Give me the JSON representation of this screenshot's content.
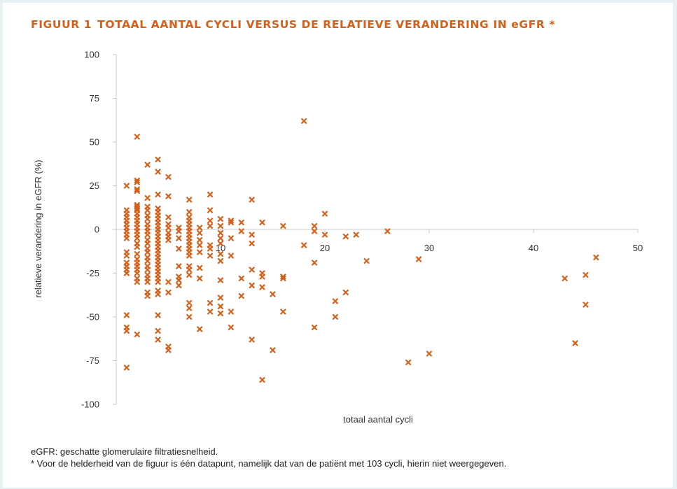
{
  "figure": {
    "label": "FIGUUR 1",
    "title": "TOTAAL AANTAL CYCLI VERSUS DE RELATIEVE VERANDERING IN eGFR *",
    "accent_color": "#d4601a"
  },
  "footnotes": {
    "line1": "eGFR: geschatte glomerulaire filtratiesnelheid.",
    "line2": "* Voor de helderheid van de figuur is één datapunt, namelijk dat van de patiënt met 103 cycli, hierin niet weergegeven."
  },
  "chart_data": {
    "type": "scatter",
    "xlabel": "totaal aantal cycli",
    "ylabel": "relatieve verandering in eGFR (%)",
    "xlim": [
      0,
      50
    ],
    "ylim": [
      -100,
      100
    ],
    "xticks": [
      10,
      20,
      30,
      40,
      50
    ],
    "yticks": [
      100,
      75,
      50,
      25,
      0,
      -25,
      -50,
      -75,
      -100
    ],
    "grid": false,
    "marker": "x",
    "color": "#d4601a",
    "points": [
      [
        1,
        25
      ],
      [
        1,
        11
      ],
      [
        1,
        9
      ],
      [
        1,
        7
      ],
      [
        1,
        5
      ],
      [
        1,
        3
      ],
      [
        1,
        1
      ],
      [
        1,
        -1
      ],
      [
        1,
        -3
      ],
      [
        1,
        -5
      ],
      [
        1,
        -13
      ],
      [
        1,
        -15
      ],
      [
        1,
        -19
      ],
      [
        1,
        -21
      ],
      [
        1,
        -23
      ],
      [
        1,
        -25
      ],
      [
        1,
        -49
      ],
      [
        1,
        -56
      ],
      [
        1,
        -58
      ],
      [
        1,
        -79
      ],
      [
        2,
        53
      ],
      [
        2,
        28
      ],
      [
        2,
        27
      ],
      [
        2,
        23
      ],
      [
        2,
        22
      ],
      [
        2,
        14
      ],
      [
        2,
        13
      ],
      [
        2,
        12
      ],
      [
        2,
        11
      ],
      [
        2,
        9
      ],
      [
        2,
        7
      ],
      [
        2,
        5
      ],
      [
        2,
        3
      ],
      [
        2,
        1
      ],
      [
        2,
        -1
      ],
      [
        2,
        -3
      ],
      [
        2,
        -5
      ],
      [
        2,
        -8
      ],
      [
        2,
        -10
      ],
      [
        2,
        -14
      ],
      [
        2,
        -17
      ],
      [
        2,
        -19
      ],
      [
        2,
        -21
      ],
      [
        2,
        -23
      ],
      [
        2,
        -25
      ],
      [
        2,
        -28
      ],
      [
        2,
        -30
      ],
      [
        2,
        -60
      ],
      [
        3,
        37
      ],
      [
        3,
        18
      ],
      [
        3,
        13
      ],
      [
        3,
        11
      ],
      [
        3,
        8
      ],
      [
        3,
        6
      ],
      [
        3,
        3
      ],
      [
        3,
        1
      ],
      [
        3,
        -1
      ],
      [
        3,
        -3
      ],
      [
        3,
        -6
      ],
      [
        3,
        -8
      ],
      [
        3,
        -11
      ],
      [
        3,
        -13
      ],
      [
        3,
        -16
      ],
      [
        3,
        -18
      ],
      [
        3,
        -21
      ],
      [
        3,
        -23
      ],
      [
        3,
        -26
      ],
      [
        3,
        -28
      ],
      [
        3,
        -30
      ],
      [
        3,
        -36
      ],
      [
        3,
        -38
      ],
      [
        4,
        40
      ],
      [
        4,
        33
      ],
      [
        4,
        20
      ],
      [
        4,
        12
      ],
      [
        4,
        10
      ],
      [
        4,
        8
      ],
      [
        4,
        6
      ],
      [
        4,
        4
      ],
      [
        4,
        2
      ],
      [
        4,
        0
      ],
      [
        4,
        -2
      ],
      [
        4,
        -4
      ],
      [
        4,
        -6
      ],
      [
        4,
        -8
      ],
      [
        4,
        -10
      ],
      [
        4,
        -12
      ],
      [
        4,
        -14
      ],
      [
        4,
        -16
      ],
      [
        4,
        -18
      ],
      [
        4,
        -20
      ],
      [
        4,
        -22
      ],
      [
        4,
        -24
      ],
      [
        4,
        -26
      ],
      [
        4,
        -28
      ],
      [
        4,
        -30
      ],
      [
        4,
        -35
      ],
      [
        4,
        -37
      ],
      [
        4,
        -49
      ],
      [
        4,
        -58
      ],
      [
        4,
        -63
      ],
      [
        5,
        30
      ],
      [
        5,
        19
      ],
      [
        5,
        7
      ],
      [
        5,
        3
      ],
      [
        5,
        1
      ],
      [
        5,
        -2
      ],
      [
        5,
        -4
      ],
      [
        5,
        -6
      ],
      [
        5,
        -30
      ],
      [
        5,
        -36
      ],
      [
        5,
        -67
      ],
      [
        5,
        -69
      ],
      [
        6,
        1
      ],
      [
        6,
        -1
      ],
      [
        6,
        -5
      ],
      [
        6,
        -11
      ],
      [
        6,
        -21
      ],
      [
        6,
        -27
      ],
      [
        6,
        -29
      ],
      [
        6,
        -32
      ],
      [
        7,
        17
      ],
      [
        7,
        10
      ],
      [
        7,
        7
      ],
      [
        7,
        5
      ],
      [
        7,
        3
      ],
      [
        7,
        1
      ],
      [
        7,
        -1
      ],
      [
        7,
        -3
      ],
      [
        7,
        -5
      ],
      [
        7,
        -7
      ],
      [
        7,
        -9
      ],
      [
        7,
        -11
      ],
      [
        7,
        -13
      ],
      [
        7,
        -15
      ],
      [
        7,
        -21
      ],
      [
        7,
        -23
      ],
      [
        7,
        -26
      ],
      [
        7,
        -42
      ],
      [
        7,
        -45
      ],
      [
        7,
        -50
      ],
      [
        8,
        1
      ],
      [
        8,
        -2
      ],
      [
        8,
        -6
      ],
      [
        8,
        -9
      ],
      [
        8,
        -13
      ],
      [
        8,
        -22
      ],
      [
        8,
        -28
      ],
      [
        8,
        -57
      ],
      [
        9,
        20
      ],
      [
        9,
        11
      ],
      [
        9,
        5
      ],
      [
        9,
        2
      ],
      [
        9,
        -9
      ],
      [
        9,
        -11
      ],
      [
        9,
        -15
      ],
      [
        9,
        -42
      ],
      [
        9,
        -47
      ],
      [
        10,
        6
      ],
      [
        10,
        2
      ],
      [
        10,
        -2
      ],
      [
        10,
        -5
      ],
      [
        10,
        -8
      ],
      [
        10,
        -14
      ],
      [
        10,
        -18
      ],
      [
        10,
        -29
      ],
      [
        10,
        -39
      ],
      [
        10,
        -44
      ],
      [
        10,
        -48
      ],
      [
        11,
        5
      ],
      [
        11,
        4
      ],
      [
        11,
        -5
      ],
      [
        11,
        -15
      ],
      [
        11,
        -47
      ],
      [
        11,
        -56
      ],
      [
        12,
        4
      ],
      [
        12,
        -1
      ],
      [
        12,
        -28
      ],
      [
        12,
        -38
      ],
      [
        13,
        17
      ],
      [
        13,
        -3
      ],
      [
        13,
        -8
      ],
      [
        13,
        -23
      ],
      [
        13,
        -32
      ],
      [
        13,
        -63
      ],
      [
        14,
        4
      ],
      [
        14,
        -25
      ],
      [
        14,
        -27
      ],
      [
        14,
        -33
      ],
      [
        14,
        -86
      ],
      [
        15,
        -37
      ],
      [
        15,
        -69
      ],
      [
        16,
        2
      ],
      [
        16,
        -27
      ],
      [
        16,
        -28
      ],
      [
        16,
        -47
      ],
      [
        18,
        62
      ],
      [
        18,
        -9
      ],
      [
        19,
        2
      ],
      [
        19,
        -1
      ],
      [
        19,
        -19
      ],
      [
        19,
        -56
      ],
      [
        20,
        9
      ],
      [
        20,
        -3
      ],
      [
        21,
        -41
      ],
      [
        21,
        -50
      ],
      [
        22,
        -4
      ],
      [
        22,
        -36
      ],
      [
        23,
        -3
      ],
      [
        24,
        -18
      ],
      [
        26,
        -1
      ],
      [
        28,
        -76
      ],
      [
        29,
        -17
      ],
      [
        30,
        -71
      ],
      [
        43,
        -28
      ],
      [
        44,
        -65
      ],
      [
        45,
        -26
      ],
      [
        45,
        -43
      ],
      [
        46,
        -16
      ]
    ]
  }
}
